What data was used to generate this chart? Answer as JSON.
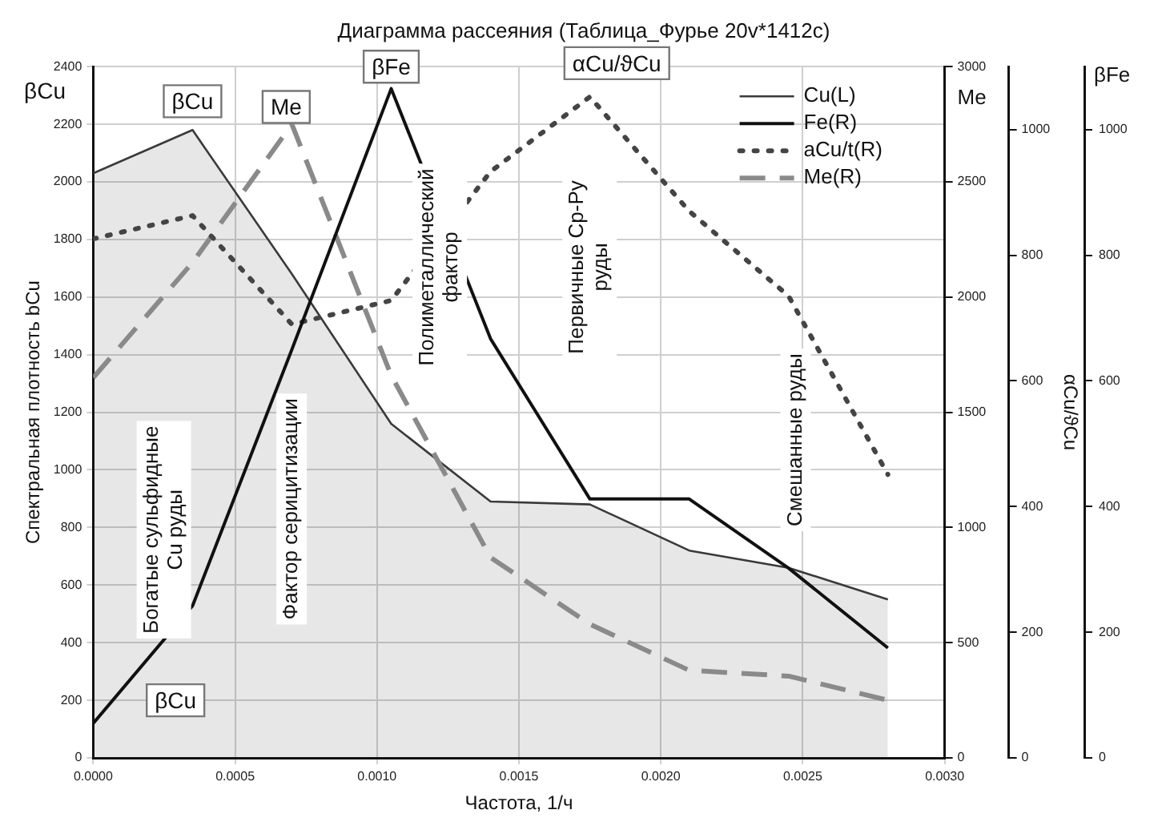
{
  "chart_data": {
    "type": "line",
    "title": "Диаграмма рассеяния (Таблица_Фурье 20v*1412c)",
    "xlabel": "Частота, 1/ч",
    "ylabel": "Спектральная плотность bCu",
    "y2label": "Me",
    "y3label": "αCu/ϑCu",
    "x": [
      0,
      0.00035,
      0.0007,
      0.00105,
      0.0014,
      0.00175,
      0.0021,
      0.00245,
      0.0028
    ],
    "series": [
      {
        "name": "Cu(L)",
        "type": "area",
        "color": "#3a3a3a",
        "line_style": "solid",
        "values": [
          2030,
          2180,
          1680,
          1160,
          890,
          880,
          720,
          660,
          550
        ]
      },
      {
        "name": "Fe(R)",
        "color": "#111111",
        "axis": "y3",
        "line_style": "solid",
        "values": [
          55,
          242,
          650,
          1065,
          667,
          412,
          412,
          302,
          175
        ]
      },
      {
        "name": "aCu/t(R)",
        "color": "#444444",
        "axis": "y3",
        "line_style": "dotted",
        "values": [
          826,
          863,
          690,
          728,
          933,
          1052,
          870,
          735,
          451
        ]
      },
      {
        "name": "Me(R)",
        "color": "#8a8a8a",
        "axis": "y2",
        "line_style": "dashed",
        "values": [
          1650,
          2150,
          2750,
          1660,
          870,
          580,
          380,
          355,
          250
        ]
      }
    ],
    "xlim": [
      0,
      0.003
    ],
    "xticks": [
      {
        "value": 0,
        "label": "0.0000"
      },
      {
        "value": 0.0005,
        "label": "0.0005"
      },
      {
        "value": 0.001,
        "label": "0.0010"
      },
      {
        "value": 0.0015,
        "label": "0.0015"
      },
      {
        "value": 0.002,
        "label": "0.0020"
      },
      {
        "value": 0.0025,
        "label": "0.0025"
      },
      {
        "value": 0.003,
        "label": "0.0030"
      }
    ],
    "ylim": [
      0,
      2400
    ],
    "yticks": [
      0,
      200,
      400,
      600,
      800,
      1000,
      1200,
      1400,
      1600,
      1800,
      2000,
      2200,
      2400
    ],
    "y2lim": [
      0,
      3000
    ],
    "y2ticks": [
      0,
      500,
      1000,
      1500,
      2000,
      2500,
      3000
    ],
    "y3lim": [
      0,
      1100
    ],
    "y3ticks": [
      0,
      200,
      400,
      600,
      800,
      1000
    ],
    "grid": true,
    "legend": "top right",
    "annotations": [
      {
        "text": "βCu",
        "x": 0.00035,
        "y": 2280
      },
      {
        "text": "Me",
        "x": 0.00068,
        "y": 2260
      },
      {
        "text": "βFe",
        "x": 0.00105,
        "y": 2400
      },
      {
        "text": "βCu",
        "x": 0.00029,
        "y": 200
      },
      "βCu",
      "βFe",
      "αCu/ϑCu",
      "Богатые сульфидные Cu руды",
      "Фактор серицитизации",
      "Полиметаллический фактор",
      "Первичные Ср-Ру руды",
      "Смешанные руды",
      "0",
      "200",
      "400",
      "600",
      "800",
      "1000"
    ]
  }
}
